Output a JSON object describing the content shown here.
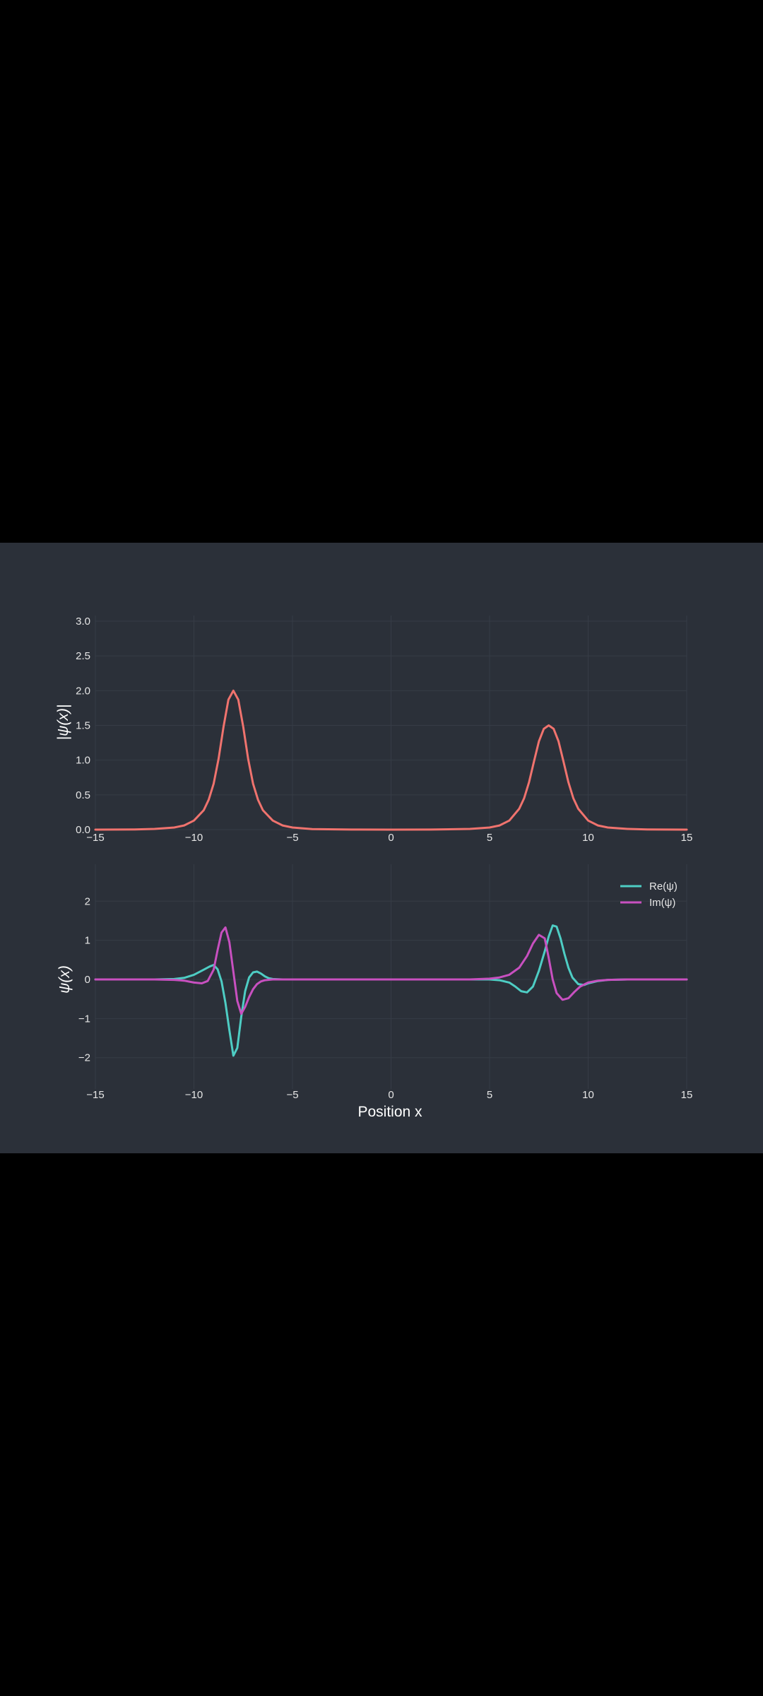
{
  "chart_data": [
    {
      "type": "line",
      "ylabel": "|ψ(x)|",
      "xlim": [
        -15,
        15
      ],
      "ylim": [
        0,
        3
      ],
      "x_ticks": [
        "−15",
        "−10",
        "−5",
        "0",
        "5",
        "10",
        "15"
      ],
      "y_ticks": [
        "0.0",
        "0.5",
        "1.0",
        "1.5",
        "2.0",
        "2.5",
        "3.0"
      ],
      "grid": true,
      "series": [
        {
          "color": "#f0736e",
          "x": [
            -15,
            -13,
            -12,
            -11,
            -10.5,
            -10,
            -9.5,
            -9.25,
            -9,
            -8.75,
            -8.5,
            -8.25,
            -8,
            -7.75,
            -7.5,
            -7.25,
            -7,
            -6.75,
            -6.5,
            -6,
            -5.5,
            -5,
            -4,
            -2,
            0,
            2,
            4,
            5,
            5.5,
            6,
            6.5,
            6.75,
            7,
            7.25,
            7.5,
            7.75,
            8,
            8.25,
            8.5,
            8.75,
            9,
            9.25,
            9.5,
            10,
            10.5,
            11,
            12,
            13,
            15
          ],
          "y": [
            0,
            0.003,
            0.01,
            0.03,
            0.06,
            0.13,
            0.28,
            0.43,
            0.66,
            1.02,
            1.48,
            1.87,
            2.0,
            1.87,
            1.48,
            1.02,
            0.66,
            0.43,
            0.28,
            0.13,
            0.06,
            0.03,
            0.008,
            0.001,
            0,
            0.001,
            0.01,
            0.03,
            0.06,
            0.13,
            0.3,
            0.45,
            0.68,
            0.98,
            1.27,
            1.45,
            1.5,
            1.45,
            1.27,
            0.98,
            0.68,
            0.45,
            0.3,
            0.13,
            0.06,
            0.03,
            0.01,
            0.003,
            0
          ]
        }
      ]
    },
    {
      "type": "line",
      "xlabel": "Position x",
      "ylabel": "ψ(x)",
      "xlim": [
        -15,
        15
      ],
      "ylim": [
        -2.8,
        2.8
      ],
      "x_ticks": [
        "−15",
        "−10",
        "−5",
        "0",
        "5",
        "10",
        "15"
      ],
      "y_ticks": [
        "−2",
        "−1",
        "0",
        "1",
        "2"
      ],
      "grid": true,
      "legend_position": "top-right",
      "series": [
        {
          "name": "Re(ψ)",
          "color": "#4ecdc4",
          "x": [
            -15,
            -12,
            -11,
            -10.5,
            -10,
            -9.5,
            -9.2,
            -9,
            -8.8,
            -8.6,
            -8.4,
            -8.2,
            -8,
            -7.8,
            -7.6,
            -7.4,
            -7.2,
            -7,
            -6.8,
            -6.6,
            -6.4,
            -6.2,
            -6,
            -5.5,
            -5,
            -4,
            0,
            4,
            5,
            5.5,
            6,
            6.3,
            6.6,
            6.9,
            7.2,
            7.5,
            7.8,
            8,
            8.2,
            8.4,
            8.6,
            8.8,
            9,
            9.2,
            9.5,
            9.8,
            10,
            10.5,
            11,
            12,
            15
          ],
          "y": [
            0,
            0,
            0.01,
            0.04,
            0.12,
            0.25,
            0.33,
            0.37,
            0.26,
            -0.05,
            -0.6,
            -1.3,
            -1.95,
            -1.75,
            -0.95,
            -0.3,
            0.05,
            0.18,
            0.2,
            0.15,
            0.08,
            0.03,
            0.01,
            0,
            0,
            0,
            0,
            0,
            0,
            -0.02,
            -0.08,
            -0.18,
            -0.3,
            -0.33,
            -0.18,
            0.22,
            0.72,
            1.1,
            1.38,
            1.35,
            1.05,
            0.65,
            0.3,
            0.05,
            -0.12,
            -0.14,
            -0.1,
            -0.04,
            -0.01,
            0,
            0
          ]
        },
        {
          "name": "Im(ψ)",
          "color": "#c850c0",
          "x": [
            -15,
            -12,
            -11,
            -10.5,
            -10,
            -9.6,
            -9.3,
            -9,
            -8.8,
            -8.6,
            -8.4,
            -8.2,
            -8,
            -7.8,
            -7.6,
            -7.4,
            -7.2,
            -7,
            -6.8,
            -6.6,
            -6.4,
            -6,
            -5.5,
            -5,
            0,
            4,
            5,
            5.5,
            6,
            6.5,
            6.9,
            7.2,
            7.5,
            7.8,
            8,
            8.2,
            8.4,
            8.7,
            9,
            9.3,
            9.6,
            10,
            10.5,
            11,
            12,
            15
          ],
          "y": [
            0,
            0,
            -0.01,
            -0.03,
            -0.08,
            -0.1,
            -0.04,
            0.25,
            0.75,
            1.2,
            1.33,
            0.95,
            0.2,
            -0.55,
            -0.88,
            -0.7,
            -0.45,
            -0.25,
            -0.12,
            -0.05,
            -0.02,
            0,
            0,
            0,
            0,
            0,
            0.02,
            0.05,
            0.12,
            0.3,
            0.6,
            0.92,
            1.14,
            1.05,
            0.55,
            0,
            -0.35,
            -0.52,
            -0.48,
            -0.32,
            -0.18,
            -0.08,
            -0.03,
            -0.01,
            0,
            0
          ]
        }
      ]
    }
  ]
}
